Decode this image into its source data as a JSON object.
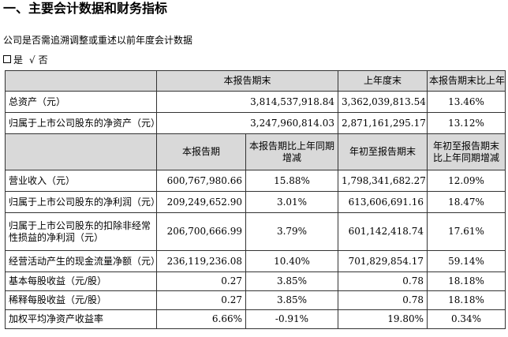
{
  "heading": "一、主要会计数据和财务指标",
  "restatement_question": "公司是否需追溯调整或重述以前年度会计数据",
  "restatement_answer": {
    "option_yes": "是",
    "selected_mark": "√",
    "option_no": "否"
  },
  "table": {
    "header1": [
      "",
      "本报告期末",
      "上年度末",
      "本报告期末比上年度末增减"
    ],
    "rows1": [
      [
        "总资产（元）",
        "3,814,537,918.84",
        "3,362,039,813.54",
        "13.46%"
      ],
      [
        "归属于上市公司股东的净资产（元）",
        "3,247,960,814.03",
        "2,871,161,295.17",
        "13.12%"
      ]
    ],
    "header2": [
      "",
      "本报告期",
      "本报告期比上年同期增减",
      "年初至报告期末",
      "年初至报告期末比上年同期增减"
    ],
    "rows2": [
      [
        "营业收入（元）",
        "600,767,980.66",
        "15.88%",
        "1,798,341,682.27",
        "12.09%"
      ],
      [
        "归属于上市公司股东的净利润（元）",
        "209,249,652.90",
        "3.01%",
        "613,606,691.16",
        "18.47%"
      ],
      [
        "归属于上市公司股东的扣除非经常性损益的净利润（元）",
        "206,700,666.99",
        "3.79%",
        "601,142,418.74",
        "17.61%"
      ],
      [
        "经营活动产生的现金流量净额（元）",
        "236,119,236.08",
        "10.40%",
        "701,829,854.17",
        "59.14%"
      ],
      [
        "基本每股收益（元/股）",
        "0.27",
        "3.85%",
        "0.78",
        "18.18%"
      ],
      [
        "稀释每股收益（元/股）",
        "0.27",
        "3.85%",
        "0.78",
        "18.18%"
      ],
      [
        "加权平均净资产收益率",
        "6.66%",
        "-0.91%",
        "19.80%",
        "0.34%"
      ]
    ]
  },
  "colors": {
    "header_fill": "#d9d9d9",
    "border": "#333333"
  }
}
